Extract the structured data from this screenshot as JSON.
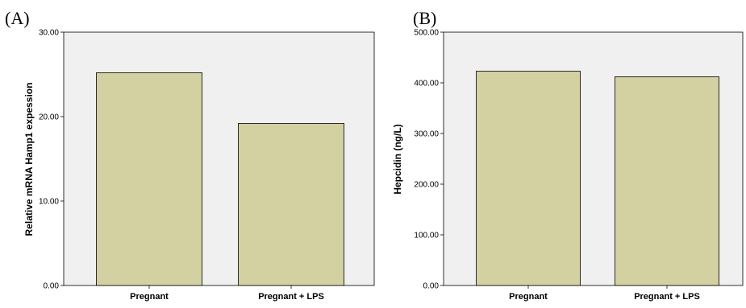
{
  "chart_data": [
    {
      "type": "bar",
      "panel_label": "(A)",
      "ylabel": "Relative mRNA Hamp1 expession",
      "categories": [
        "Pregnant",
        "Pregnant + LPS"
      ],
      "values": [
        25.2,
        19.2
      ],
      "ylim": [
        0,
        30
      ],
      "yticks": [
        "0.00",
        "10.00",
        "20.00",
        "30.00"
      ],
      "bar_color": "#d3d0a2",
      "plot_bg": "#f0f0f0"
    },
    {
      "type": "bar",
      "panel_label": "(B)",
      "ylabel": "Hepcidin (ng/L)",
      "categories": [
        "Pregnant",
        "Pregnant + LPS"
      ],
      "values": [
        423,
        412
      ],
      "ylim": [
        0,
        500
      ],
      "yticks": [
        "0.00",
        "100.00",
        "200.00",
        "300.00",
        "400.00",
        "500.00"
      ],
      "bar_color": "#d3d0a2",
      "plot_bg": "#f0f0f0"
    }
  ]
}
